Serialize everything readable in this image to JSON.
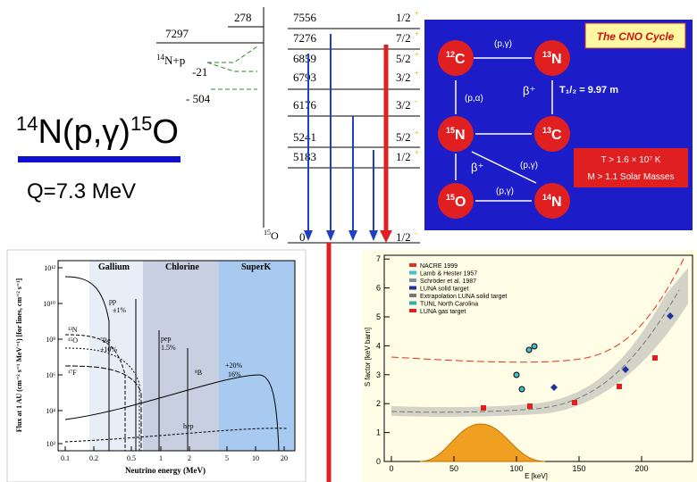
{
  "title": {
    "mass_a": "14",
    "text_a": "N(p,",
    "gamma": "γ",
    "text_b": ")",
    "mass_b": "15",
    "text_c": "O"
  },
  "q_value": "Q=7.3 MeV",
  "level_scheme": {
    "resonance": "278",
    "threshold_energy": "7297",
    "channel_mass": "14",
    "channel": "N+p",
    "subthreshold_a": "-21",
    "subthreshold_b": "- 504",
    "nucleus_mass": "15",
    "nucleus": "O",
    "levels": [
      {
        "energy": "7556",
        "spin": "1/2",
        "parity": "+"
      },
      {
        "energy": "7276",
        "spin": "7/2",
        "parity": "+"
      },
      {
        "energy": "6859",
        "spin": "5/2",
        "parity": "+"
      },
      {
        "energy": "6793",
        "spin": "3/2",
        "parity": "+"
      },
      {
        "energy": "6176",
        "spin": "3/2",
        "parity": "-"
      },
      {
        "energy": "5241",
        "spin": "5/2",
        "parity": "+"
      },
      {
        "energy": "5183",
        "spin": "1/2",
        "parity": "+"
      },
      {
        "energy": "0",
        "spin": "1/2",
        "parity": "-"
      }
    ]
  },
  "cno_cycle": {
    "title": "The CNO Cycle",
    "nuclei": [
      {
        "mass": "12",
        "symbol": "C"
      },
      {
        "mass": "13",
        "symbol": "N"
      },
      {
        "mass": "15",
        "symbol": "N"
      },
      {
        "mass": "13",
        "symbol": "C"
      },
      {
        "mass": "15",
        "symbol": "O"
      },
      {
        "mass": "14",
        "symbol": "N"
      }
    ],
    "reactions": [
      "(p,γ)",
      "(p,α)",
      "β⁺",
      "(p,γ)",
      "β⁺",
      "(p,γ)"
    ],
    "half_life": "T₁/₂ = 9.97 m",
    "conditions": [
      "T > 1.6 × 10⁷ K",
      "M > 1.1 Solar Masses"
    ]
  },
  "neutrino_plot": {
    "detectors": [
      "Gallium",
      "Chlorine",
      "SuperK"
    ],
    "y_label": "Flux at 1 AU (cm⁻² s⁻¹ MeV⁻¹) [for lines, cm⁻² s⁻¹]",
    "x_label": "Neutrino energy (MeV)",
    "x_ticks": [
      "0.1",
      "0.2",
      "0.5",
      "1",
      "2",
      "5",
      "10",
      "20"
    ],
    "y_ticks": [
      "10¹²",
      "10¹⁰",
      "10⁸",
      "10⁶",
      "10⁴",
      "10²"
    ],
    "sources": [
      "pp",
      "±1%",
      "¹³N",
      "¹⁵O",
      "⁷Be",
      "±10%",
      "pep",
      "1.5%",
      "¹⁷F",
      "⁸B",
      "+20%",
      "16%",
      "hep"
    ]
  },
  "sfactor_plot": {
    "legend": [
      "NACRE 1999",
      "Lamb & Hester 1957",
      "Schröder et al. 1987",
      "LUNA solid target",
      "Extrapolation LUNA solid target",
      "TUNL North Carolina",
      "LUNA gas target"
    ],
    "y_label": "S factor [keV barn]",
    "x_label": "E [keV]",
    "x_ticks": [
      "0",
      "50",
      "100",
      "150",
      "200"
    ],
    "y_ticks": [
      "0",
      "1",
      "2",
      "3",
      "4",
      "5",
      "6",
      "7"
    ]
  }
}
